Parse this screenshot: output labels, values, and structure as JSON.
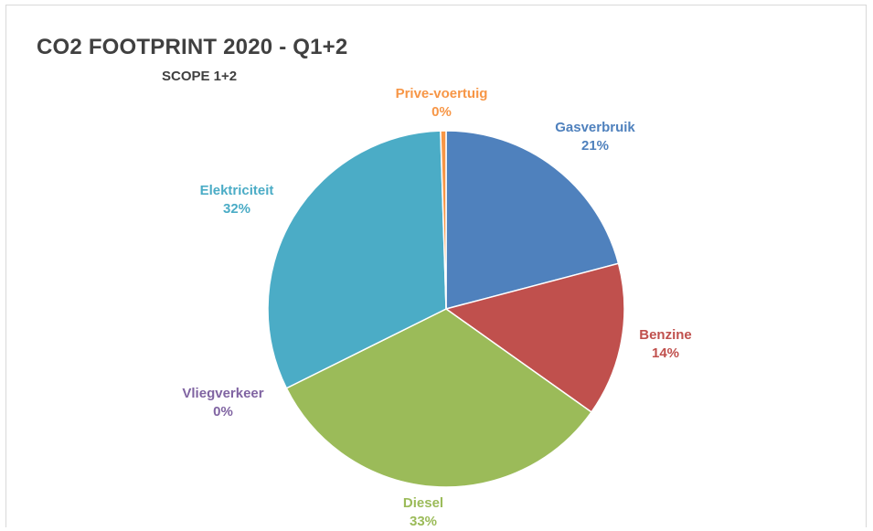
{
  "chart_data": {
    "type": "pie",
    "title": "CO2 FOOTPRINT 2020 - Q1+2",
    "subtitle": "SCOPE 1+2",
    "slices": [
      {
        "label": "Gasverbruik",
        "value": 21,
        "value_label": "21%",
        "color": "#4f81bd"
      },
      {
        "label": "Benzine",
        "value": 14,
        "value_label": "14%",
        "color": "#c0504d"
      },
      {
        "label": "Diesel",
        "value": 33,
        "value_label": "33%",
        "color": "#9bbb59"
      },
      {
        "label": "Vliegverkeer",
        "value": 0,
        "value_label": "0%",
        "color": "#8064a2"
      },
      {
        "label": "Elektriciteit",
        "value": 32,
        "value_label": "32%",
        "color": "#4bacc6"
      },
      {
        "label": "Prive-voertuig",
        "value": 0.5,
        "value_label": "0%",
        "color": "#f79646"
      }
    ]
  }
}
